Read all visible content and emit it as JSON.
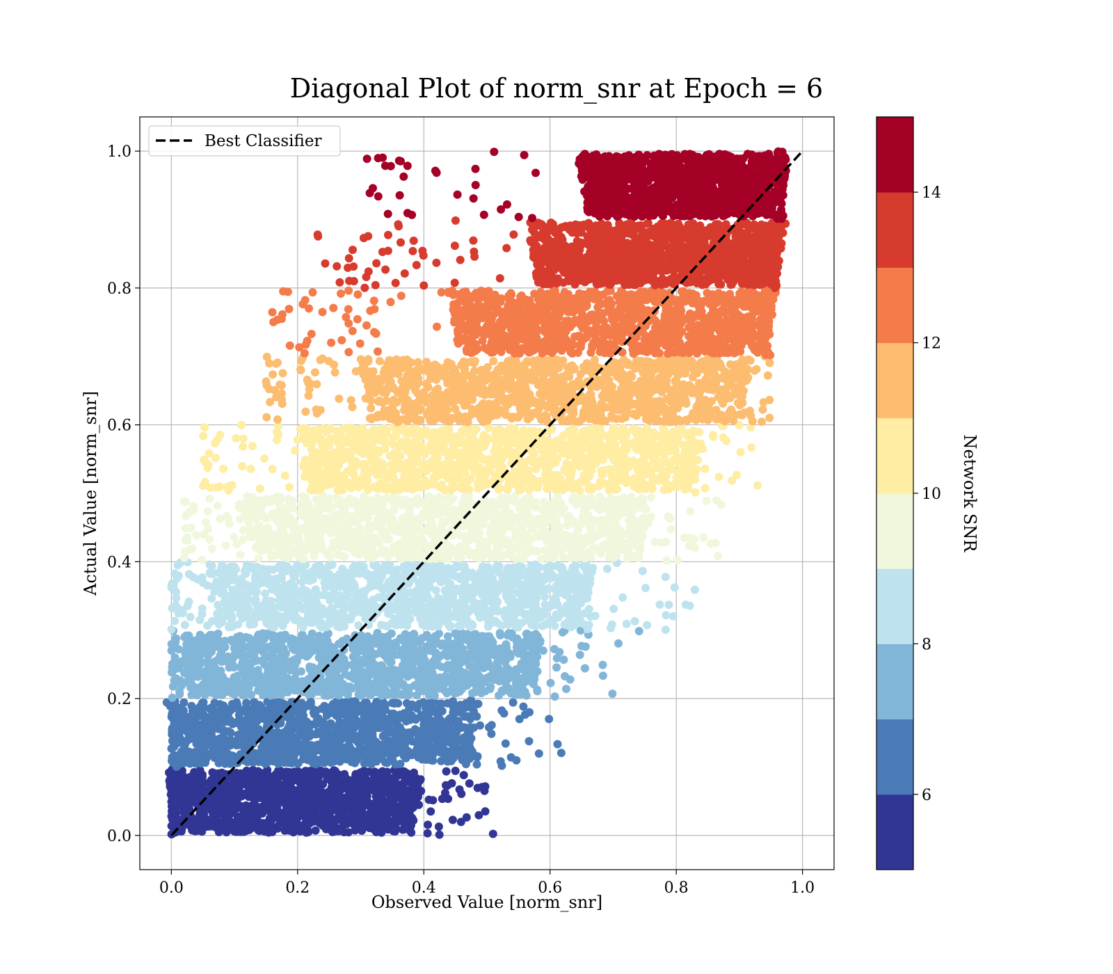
{
  "chart_data": {
    "type": "scatter",
    "title": "Diagonal Plot of norm_snr at Epoch = 6",
    "xlabel": "Observed Value [norm_snr]",
    "ylabel": "Actual Value [norm_snr]",
    "xlim": [
      -0.05,
      1.05
    ],
    "ylim": [
      -0.05,
      1.05
    ],
    "xticks": [
      "0.0",
      "0.2",
      "0.4",
      "0.6",
      "0.8",
      "1.0"
    ],
    "yticks": [
      "0.0",
      "0.2",
      "0.4",
      "0.6",
      "0.8",
      "1.0"
    ],
    "grid": true,
    "legend": {
      "position": "top-left",
      "entries": [
        {
          "label": "Best Classifier",
          "style": "dashed",
          "color": "#000000"
        }
      ]
    },
    "reference_line": {
      "x": [
        0,
        1
      ],
      "y": [
        0,
        1
      ],
      "label": "Best Classifier"
    },
    "colorbar": {
      "label": "Network SNR",
      "range": [
        5,
        15
      ],
      "tick_values": [
        6,
        8,
        10,
        12,
        14
      ],
      "tick_labels": [
        "6",
        "8",
        "10",
        "12",
        "14"
      ],
      "colors": [
        "#313695",
        "#4a7bb7",
        "#82b6d8",
        "#bee3ee",
        "#eff8dc",
        "#feeda2",
        "#fcbd70",
        "#f47c4b",
        "#d73b2e",
        "#a50026"
      ]
    },
    "bands": [
      {
        "snr_bin": [
          5,
          6
        ],
        "y": [
          0.0,
          0.1
        ],
        "x_core": [
          0.01,
          0.38
        ],
        "x_scatter": [
          0.0,
          0.52
        ]
      },
      {
        "snr_bin": [
          6,
          7
        ],
        "y": [
          0.1,
          0.2
        ],
        "x_core": [
          0.01,
          0.47
        ],
        "x_scatter": [
          0.0,
          0.62
        ]
      },
      {
        "snr_bin": [
          7,
          8
        ],
        "y": [
          0.2,
          0.3
        ],
        "x_core": [
          0.03,
          0.57
        ],
        "x_scatter": [
          0.0,
          0.75
        ]
      },
      {
        "snr_bin": [
          8,
          9
        ],
        "y": [
          0.3,
          0.4
        ],
        "x_core": [
          0.07,
          0.65
        ],
        "x_scatter": [
          0.0,
          0.85
        ]
      },
      {
        "snr_bin": [
          9,
          10
        ],
        "y": [
          0.4,
          0.5
        ],
        "x_core": [
          0.12,
          0.74
        ],
        "x_scatter": [
          0.02,
          0.9
        ]
      },
      {
        "snr_bin": [
          10,
          11
        ],
        "y": [
          0.5,
          0.6
        ],
        "x_core": [
          0.2,
          0.82
        ],
        "x_scatter": [
          0.05,
          0.93
        ]
      },
      {
        "snr_bin": [
          11,
          12
        ],
        "y": [
          0.6,
          0.7
        ],
        "x_core": [
          0.3,
          0.9
        ],
        "x_scatter": [
          0.15,
          0.95
        ]
      },
      {
        "snr_bin": [
          12,
          13
        ],
        "y": [
          0.7,
          0.8
        ],
        "x_core": [
          0.43,
          0.94
        ],
        "x_scatter": [
          0.16,
          0.95
        ]
      },
      {
        "snr_bin": [
          13,
          14
        ],
        "y": [
          0.8,
          0.9
        ],
        "x_core": [
          0.55,
          0.955
        ],
        "x_scatter": [
          0.23,
          0.96
        ]
      },
      {
        "snr_bin": [
          14,
          15
        ],
        "y": [
          0.9,
          1.0
        ],
        "x_core": [
          0.63,
          0.96
        ],
        "x_scatter": [
          0.31,
          0.97
        ]
      }
    ]
  }
}
